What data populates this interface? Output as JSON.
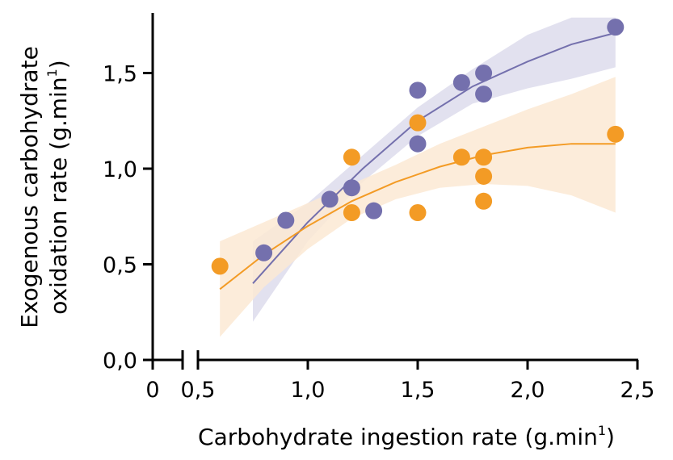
{
  "chart_data": {
    "type": "scatter",
    "xlabel": "Carbohydrate ingestion rate (g.min",
    "xlabel_sup": "1",
    "xlabel_end": ")",
    "ylabel_line1": "Exogenous carbohydrate",
    "ylabel_line2": "oxidation rate (g.min",
    "ylabel_sup": "1",
    "ylabel_end": ")",
    "xlim": [
      0,
      2.5
    ],
    "ylim": [
      0,
      1.8
    ],
    "axis_break": "x between 0 and 0,5",
    "x_ticks": [
      {
        "value": 0,
        "label": "0"
      },
      {
        "value": 0.5,
        "label": "0,5"
      },
      {
        "value": 1.0,
        "label": "1,0"
      },
      {
        "value": 1.5,
        "label": "1,5"
      },
      {
        "value": 2.0,
        "label": "2,0"
      },
      {
        "value": 2.5,
        "label": "2,5"
      }
    ],
    "y_ticks": [
      {
        "value": 0.0,
        "label": "0,0"
      },
      {
        "value": 0.5,
        "label": "0,5"
      },
      {
        "value": 1.0,
        "label": "1,0"
      },
      {
        "value": 1.5,
        "label": "1,5"
      }
    ],
    "grid": false,
    "legend": "none",
    "series": [
      {
        "color": "#7470ad",
        "band_color": "#dddcec",
        "points": [
          [
            0.8,
            0.56
          ],
          [
            0.9,
            0.73
          ],
          [
            1.1,
            0.84
          ],
          [
            1.2,
            0.9
          ],
          [
            1.3,
            0.78
          ],
          [
            1.5,
            1.13
          ],
          [
            1.5,
            1.41
          ],
          [
            1.7,
            1.45
          ],
          [
            1.8,
            1.5
          ],
          [
            1.8,
            1.39
          ],
          [
            2.4,
            1.74
          ]
        ],
        "fit": [
          [
            0.75,
            0.4
          ],
          [
            1.0,
            0.72
          ],
          [
            1.25,
            1.0
          ],
          [
            1.5,
            1.25
          ],
          [
            1.75,
            1.43
          ],
          [
            2.0,
            1.56
          ],
          [
            2.2,
            1.65
          ],
          [
            2.4,
            1.71
          ]
        ],
        "ci_upper": [
          [
            0.75,
            0.62
          ],
          [
            1.0,
            0.82
          ],
          [
            1.25,
            1.07
          ],
          [
            1.5,
            1.32
          ],
          [
            1.75,
            1.52
          ],
          [
            2.0,
            1.7
          ],
          [
            2.2,
            1.79
          ],
          [
            2.4,
            1.79
          ]
        ],
        "ci_lower": [
          [
            0.75,
            0.2
          ],
          [
            1.0,
            0.62
          ],
          [
            1.25,
            0.93
          ],
          [
            1.5,
            1.17
          ],
          [
            1.75,
            1.34
          ],
          [
            2.0,
            1.42
          ],
          [
            2.2,
            1.47
          ],
          [
            2.4,
            1.53
          ]
        ]
      },
      {
        "color": "#f39b25",
        "band_color": "#fce9d3",
        "points": [
          [
            0.6,
            0.49
          ],
          [
            1.2,
            1.06
          ],
          [
            1.2,
            0.77
          ],
          [
            1.5,
            1.24
          ],
          [
            1.5,
            0.77
          ],
          [
            1.7,
            1.06
          ],
          [
            1.8,
            1.06
          ],
          [
            1.8,
            0.96
          ],
          [
            1.8,
            0.83
          ],
          [
            2.4,
            1.18
          ]
        ],
        "fit": [
          [
            0.6,
            0.37
          ],
          [
            0.8,
            0.55
          ],
          [
            1.0,
            0.7
          ],
          [
            1.2,
            0.83
          ],
          [
            1.4,
            0.93
          ],
          [
            1.6,
            1.01
          ],
          [
            1.8,
            1.07
          ],
          [
            2.0,
            1.11
          ],
          [
            2.2,
            1.13
          ],
          [
            2.4,
            1.13
          ]
        ],
        "ci_upper": [
          [
            0.6,
            0.62
          ],
          [
            0.8,
            0.72
          ],
          [
            1.0,
            0.82
          ],
          [
            1.2,
            0.92
          ],
          [
            1.4,
            1.02
          ],
          [
            1.6,
            1.13
          ],
          [
            1.8,
            1.22
          ],
          [
            2.0,
            1.31
          ],
          [
            2.2,
            1.39
          ],
          [
            2.4,
            1.48
          ]
        ],
        "ci_lower": [
          [
            0.6,
            0.12
          ],
          [
            0.8,
            0.38
          ],
          [
            1.0,
            0.58
          ],
          [
            1.2,
            0.74
          ],
          [
            1.4,
            0.84
          ],
          [
            1.6,
            0.9
          ],
          [
            1.8,
            0.92
          ],
          [
            2.0,
            0.91
          ],
          [
            2.2,
            0.86
          ],
          [
            2.4,
            0.77
          ]
        ]
      }
    ]
  }
}
